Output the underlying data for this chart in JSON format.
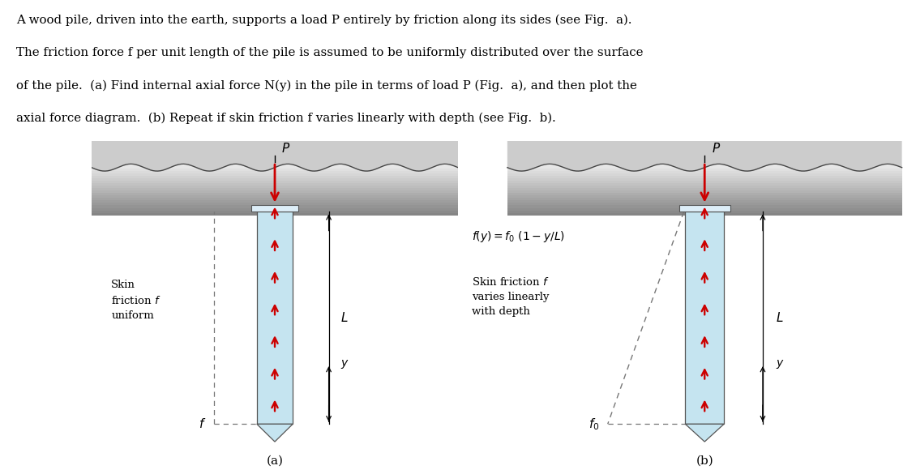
{
  "fig_width": 11.3,
  "fig_height": 5.8,
  "background_color": "#ffffff",
  "text_color": "#000000",
  "arrow_color": "#cc0000",
  "dashed_color": "#777777",
  "pile_fill": "#c5e4f0",
  "pile_edge": "#555555",
  "earth_dark": "#999999",
  "earth_light": "#d8d8d8",
  "cap_fill": "#ddeef8",
  "title_lines": [
    "A wood pile, driven into the earth, supports a load P entirely by friction along its sides (see Fig.  a).",
    "The friction force f per unit length of the pile is assumed to be uniformly distributed over the surface",
    "of the pile.  (a) Find internal axial force N(y) in the pile in terms of load P (Fig.  a), and then plot the",
    "axial force diagram.  (b) Repeat if skin friction f varies linearly with depth (see Fig.  b)."
  ]
}
